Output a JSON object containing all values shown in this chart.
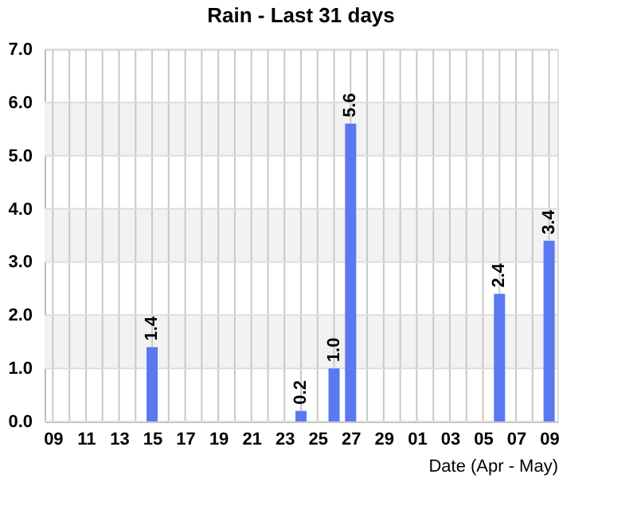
{
  "chart_data": {
    "type": "bar",
    "title": "Rain - Last 31 days",
    "xlabel": "Date (Apr - May)",
    "categories": [
      "09",
      null,
      "11",
      null,
      "13",
      null,
      "15",
      null,
      "17",
      null,
      "19",
      null,
      "21",
      null,
      "23",
      null,
      "25",
      null,
      "27",
      null,
      "29",
      null,
      "01",
      null,
      "03",
      null,
      "05",
      null,
      "07",
      null,
      "09"
    ],
    "values": [
      0,
      0,
      0,
      0,
      0,
      0,
      1.4,
      0,
      0,
      0,
      0,
      0,
      0,
      0,
      0,
      0.2,
      0,
      1.0,
      5.6,
      0,
      0,
      0,
      0,
      0,
      0,
      0,
      0,
      2.4,
      0,
      0,
      3.4
    ],
    "value_labels": [
      null,
      null,
      null,
      null,
      null,
      null,
      "1.4",
      null,
      null,
      null,
      null,
      null,
      null,
      null,
      null,
      "0.2",
      null,
      "1.0",
      "5.6",
      null,
      null,
      null,
      null,
      null,
      null,
      null,
      null,
      "2.4",
      null,
      null,
      "3.4"
    ],
    "color": "#5a78f0",
    "ylim": [
      0,
      7
    ],
    "yticks": [
      {
        "value": 0,
        "label": "0.0"
      },
      {
        "value": 1,
        "label": "1.0"
      },
      {
        "value": 2,
        "label": "2.0"
      },
      {
        "value": 3,
        "label": "3.0"
      },
      {
        "value": 4,
        "label": "4.0"
      },
      {
        "value": 5,
        "label": "5.0"
      },
      {
        "value": 6,
        "label": "6.0"
      },
      {
        "value": 7,
        "label": "7.0"
      }
    ],
    "bands": [
      {
        "axis": "y",
        "from": 1,
        "to": 2,
        "color": "#f2f2f2"
      },
      {
        "axis": "y",
        "from": 3,
        "to": 4,
        "color": "#f2f2f2"
      },
      {
        "axis": "y",
        "from": 5,
        "to": 6,
        "color": "#f2f2f2"
      }
    ],
    "grid": true,
    "legend": false
  }
}
